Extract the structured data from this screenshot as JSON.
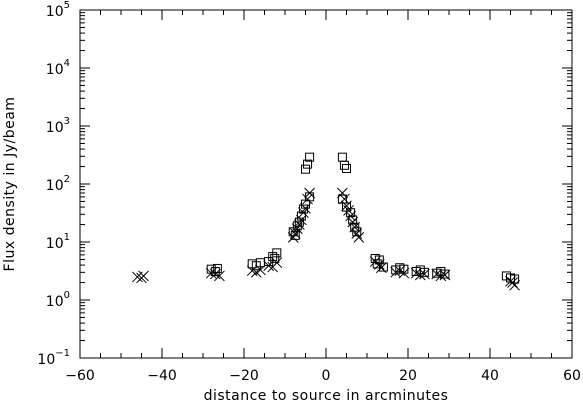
{
  "chart_data": {
    "type": "scatter",
    "title": "",
    "xlabel": "distance to source in arcminutes",
    "ylabel": "Flux density in Jy/beam",
    "xlim": [
      -60,
      60
    ],
    "ylim": [
      0.1,
      100000
    ],
    "yscale": "log",
    "grid": false,
    "legend": "none",
    "x_ticks": [
      -60,
      -40,
      -20,
      0,
      20,
      40,
      60
    ],
    "x_tick_labels": [
      "−60",
      "−40",
      "−20",
      "0",
      "20",
      "40",
      "60"
    ],
    "y_ticks": [
      0.1,
      1,
      10,
      100,
      1000,
      10000,
      100000
    ],
    "y_tick_labels": [
      {
        "base": "10",
        "exp": "−1"
      },
      {
        "base": "10",
        "exp": "0"
      },
      {
        "base": "10",
        "exp": "1"
      },
      {
        "base": "10",
        "exp": "2"
      },
      {
        "base": "10",
        "exp": "3"
      },
      {
        "base": "10",
        "exp": "4"
      },
      {
        "base": "10",
        "exp": "5"
      }
    ],
    "series": [
      {
        "marker": "square",
        "points": [
          [
            -28,
            3.4
          ],
          [
            -27,
            3.1
          ],
          [
            -26.5,
            3.5
          ],
          [
            -18,
            4.2
          ],
          [
            -17,
            3.9
          ],
          [
            -16,
            4.4
          ],
          [
            -14,
            4.6
          ],
          [
            -13,
            5.6
          ],
          [
            -12,
            6.5
          ],
          [
            -12.5,
            5.2
          ],
          [
            -8,
            15
          ],
          [
            -7.5,
            13
          ],
          [
            -7,
            19
          ],
          [
            -6.5,
            22
          ],
          [
            -6,
            28
          ],
          [
            -5.5,
            37
          ],
          [
            -5,
            45
          ],
          [
            -4,
            60
          ],
          [
            -5,
            180
          ],
          [
            -4.5,
            220
          ],
          [
            -4,
            290
          ],
          [
            4,
            290
          ],
          [
            4.5,
            210
          ],
          [
            5,
            185
          ],
          [
            4,
            55
          ],
          [
            5,
            40
          ],
          [
            6,
            32
          ],
          [
            6.5,
            24
          ],
          [
            7,
            18
          ],
          [
            7.5,
            15
          ],
          [
            12,
            5.2
          ],
          [
            13,
            4.9
          ],
          [
            12.5,
            4.2
          ],
          [
            14,
            3.7
          ],
          [
            17,
            3.3
          ],
          [
            18,
            3.6
          ],
          [
            19,
            3.4
          ],
          [
            22,
            3.1
          ],
          [
            23,
            3.3
          ],
          [
            24,
            3.0
          ],
          [
            27,
            2.9
          ],
          [
            28,
            3.1
          ],
          [
            29,
            2.8
          ],
          [
            44,
            2.6
          ],
          [
            45,
            2.4
          ],
          [
            46,
            2.3
          ]
        ]
      },
      {
        "marker": "x",
        "points": [
          [
            -46,
            2.5
          ],
          [
            -45,
            2.4
          ],
          [
            -44.5,
            2.6
          ],
          [
            -28,
            2.9
          ],
          [
            -27,
            2.8
          ],
          [
            -26,
            2.6
          ],
          [
            -18,
            3.2
          ],
          [
            -17,
            3.0
          ],
          [
            -16,
            3.3
          ],
          [
            -14,
            3.9
          ],
          [
            -13,
            3.7
          ],
          [
            -12,
            4.4
          ],
          [
            -8,
            12
          ],
          [
            -7.5,
            14
          ],
          [
            -7,
            17
          ],
          [
            -6.5,
            20
          ],
          [
            -6,
            24
          ],
          [
            -5.5,
            32
          ],
          [
            -5,
            38
          ],
          [
            -4.5,
            55
          ],
          [
            -4,
            70
          ],
          [
            4,
            70
          ],
          [
            4.5,
            55
          ],
          [
            5,
            42
          ],
          [
            5.5,
            35
          ],
          [
            6,
            28
          ],
          [
            6.5,
            22
          ],
          [
            7,
            18
          ],
          [
            7.5,
            14
          ],
          [
            8,
            12
          ],
          [
            12,
            4.6
          ],
          [
            13,
            4.1
          ],
          [
            13.5,
            3.6
          ],
          [
            17,
            3.0
          ],
          [
            18,
            3.2
          ],
          [
            19,
            2.9
          ],
          [
            22,
            2.9
          ],
          [
            23,
            2.7
          ],
          [
            24,
            2.8
          ],
          [
            27,
            2.8
          ],
          [
            28,
            2.6
          ],
          [
            29,
            2.7
          ],
          [
            45,
            2.1
          ],
          [
            46,
            1.8
          ],
          [
            45.5,
            2.0
          ]
        ]
      }
    ]
  }
}
